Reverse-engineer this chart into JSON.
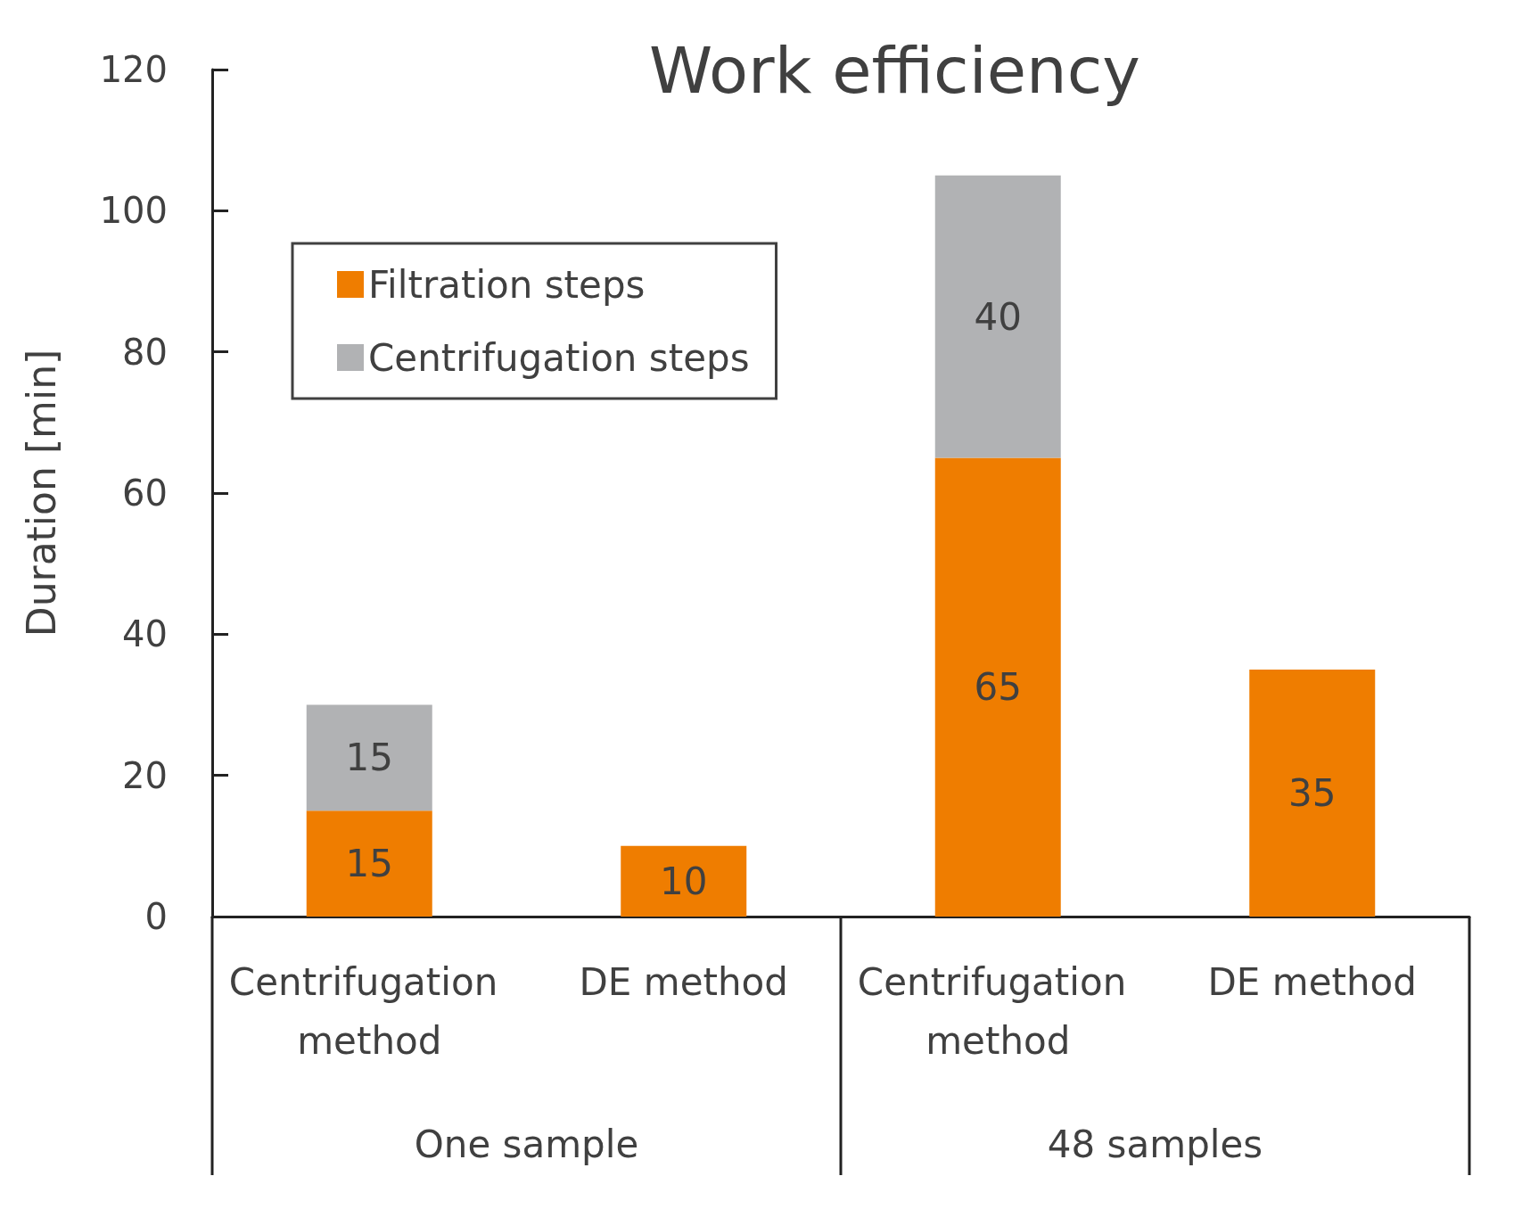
{
  "chart_data": {
    "type": "bar",
    "title": "Work efficiency",
    "ylabel": "Duration [min]",
    "categories": [
      "Centrifugation method",
      "DE method",
      "Centrifugation method",
      "DE method"
    ],
    "series": [
      {
        "name": "Filtration steps",
        "color": "#ef7d00",
        "values": [
          15,
          10,
          65,
          35
        ]
      },
      {
        "name": "Centrifugation steps",
        "color": "#b1b2b4",
        "values": [
          15,
          null,
          40,
          null
        ]
      }
    ],
    "stacked": true,
    "data_labels": true,
    "ylim": [
      0,
      120
    ],
    "yticks": [
      0,
      20,
      40,
      60,
      80,
      100,
      120
    ],
    "grid": false,
    "legend": "top left",
    "annotations": [
      "One sample",
      "48 samples"
    ]
  }
}
